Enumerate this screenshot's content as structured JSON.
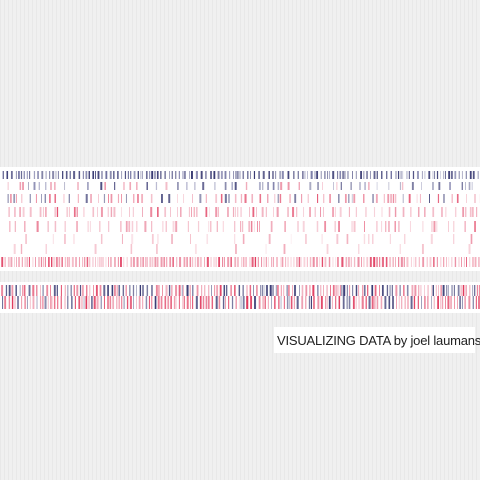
{
  "artwork": {
    "colors": {
      "navy": "#2e2f6b",
      "crimson": "#de2f54",
      "pink": "#e87d95",
      "band_background": "#ffffff",
      "page_background": "#f0f0f0"
    }
  },
  "caption": {
    "text": "VISUALIZING DATA by joel laumans"
  }
}
